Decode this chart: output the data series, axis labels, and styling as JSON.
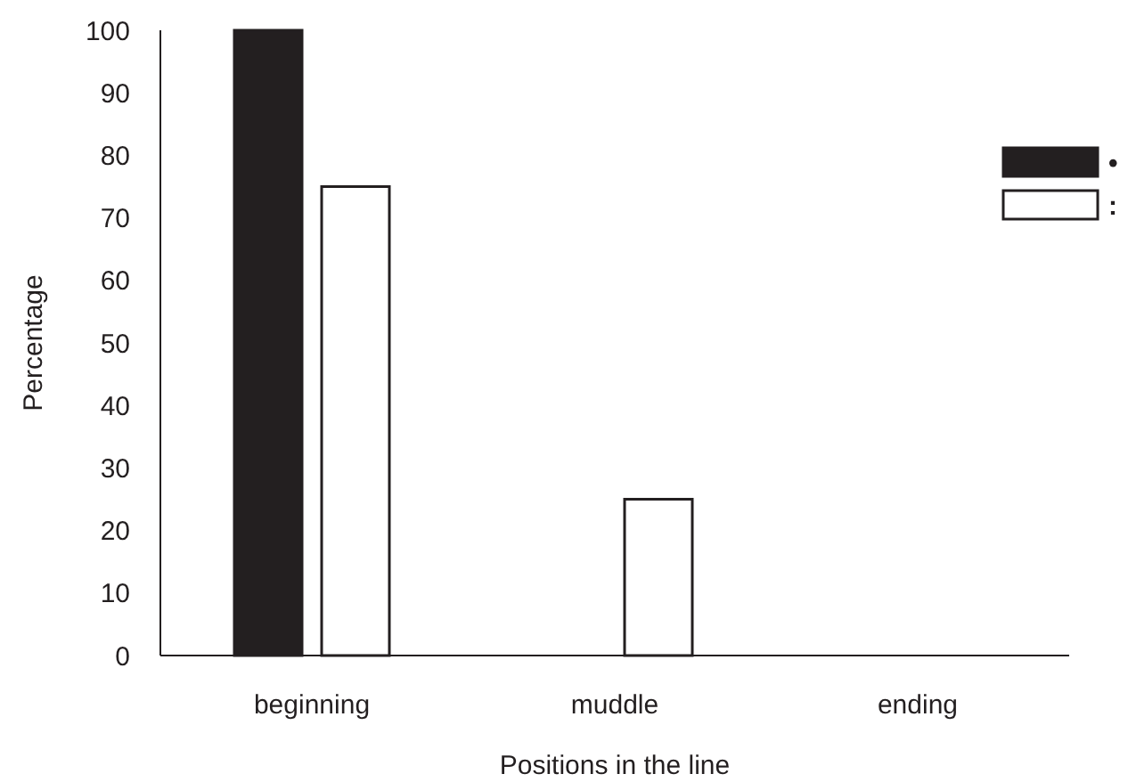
{
  "chart_data": {
    "type": "bar",
    "xlabel": "Positions in the line",
    "ylabel": "Percentage",
    "categories": [
      "beginning",
      "muddle",
      "ending"
    ],
    "series": [
      {
        "name": "•",
        "color": "#231f20",
        "values": [
          100,
          0,
          0
        ]
      },
      {
        "name": ":",
        "color": "#ffffff",
        "values": [
          75,
          25,
          0
        ]
      }
    ],
    "ylim": [
      0,
      100
    ],
    "yticks": [
      0,
      10,
      20,
      30,
      40,
      50,
      60,
      70,
      80,
      90,
      100
    ],
    "grid": false,
    "legend": "right"
  }
}
